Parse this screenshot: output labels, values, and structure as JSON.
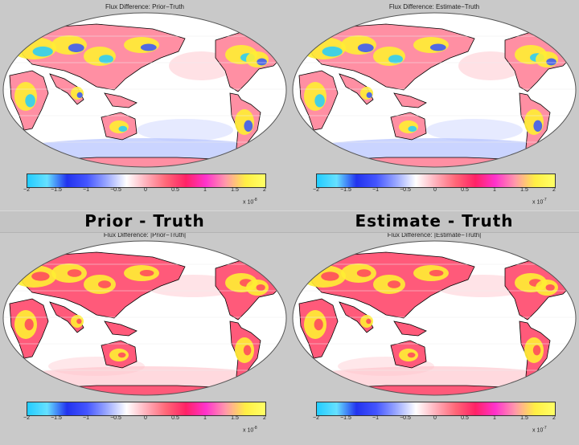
{
  "labels": {
    "left": "Prior - Truth",
    "right": "Estimate - Truth"
  },
  "panels": [
    {
      "title": "Flux Difference:  Prior−Truth",
      "exponent": "x 10",
      "exp_power": "-8",
      "style": "signed"
    },
    {
      "title": "Flux Difference:  Estimate−Truth",
      "exponent": "x 10",
      "exp_power": "-7",
      "style": "signed"
    },
    {
      "title": "Flux Difference: |Prior−Truth|",
      "exponent": "x 10",
      "exp_power": "-8",
      "style": "abs"
    },
    {
      "title": "Flux Difference: |Estimate−Truth|",
      "exponent": "x 10",
      "exp_power": "-7",
      "style": "abs"
    }
  ],
  "colorbar": {
    "ticks": [
      "−2",
      "−1.5",
      "−1",
      "−0.5",
      "0",
      "0.5",
      "1",
      "1.5",
      "2"
    ],
    "min": -2,
    "max": 2,
    "colors": [
      "#22ccff",
      "#66e0ff",
      "#2233ee",
      "#4455ff",
      "#9aa8ff",
      "#ffffff",
      "#ffb0bb",
      "#ff6677",
      "#ff2266",
      "#ff33cc",
      "#ff99aa",
      "#ffee44",
      "#ffff66"
    ]
  }
}
